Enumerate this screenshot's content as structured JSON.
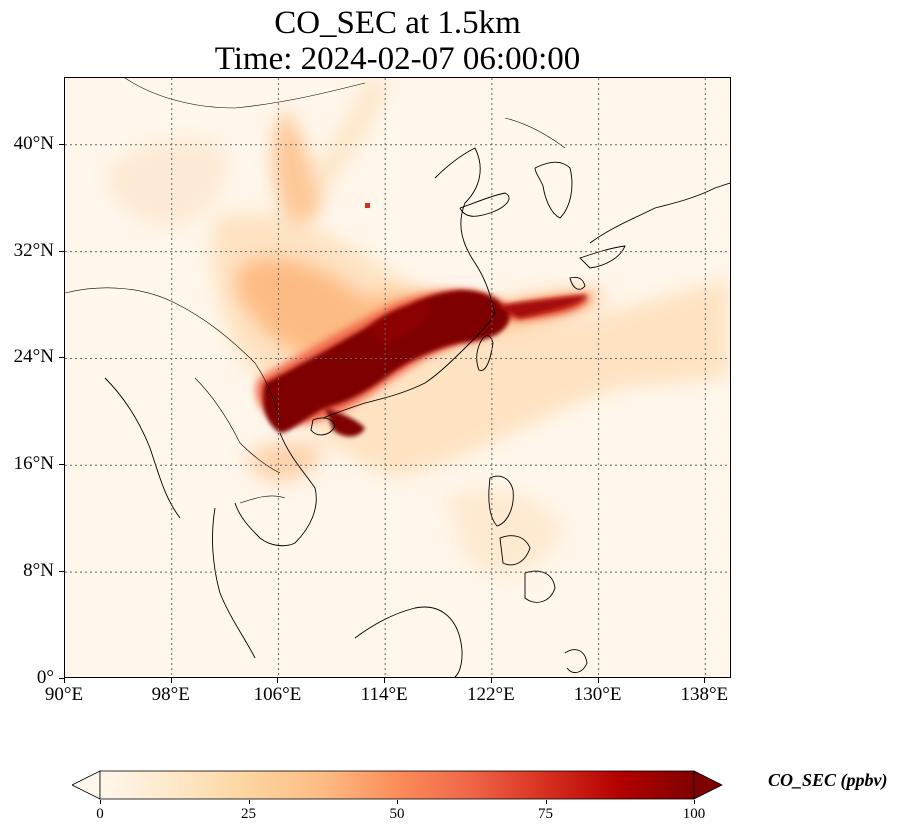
{
  "title": {
    "line1": "CO_SEC at 1.5km",
    "line2": "Time: 2024-02-07 06:00:00"
  },
  "map": {
    "lon_range": [
      90,
      140
    ],
    "lat_range": [
      0,
      45
    ],
    "lat_ticks": [
      {
        "value": 0,
        "label": "0°"
      },
      {
        "value": 8,
        "label": "8°N"
      },
      {
        "value": 16,
        "label": "16°N"
      },
      {
        "value": 24,
        "label": "24°N"
      },
      {
        "value": 32,
        "label": "32°N"
      },
      {
        "value": 40,
        "label": "40°N"
      }
    ],
    "lon_ticks": [
      {
        "value": 90,
        "label": "90°E"
      },
      {
        "value": 98,
        "label": "98°E"
      },
      {
        "value": 106,
        "label": "106°E"
      },
      {
        "value": 114,
        "label": "114°E"
      },
      {
        "value": 122,
        "label": "122°E"
      },
      {
        "value": 130,
        "label": "130°E"
      },
      {
        "value": 138,
        "label": "138°E"
      }
    ],
    "gridlines": true
  },
  "colorbar": {
    "label": "CO_SEC (ppbv)",
    "ticks": [
      "0",
      "25",
      "50",
      "75",
      "100"
    ],
    "range": [
      0,
      100
    ],
    "extend": "both",
    "colors": [
      "#fff7ec",
      "#fee8c8",
      "#fdd49e",
      "#fdbb84",
      "#fc8d59",
      "#ef6548",
      "#d7301f",
      "#b30000",
      "#7f0000"
    ]
  }
}
